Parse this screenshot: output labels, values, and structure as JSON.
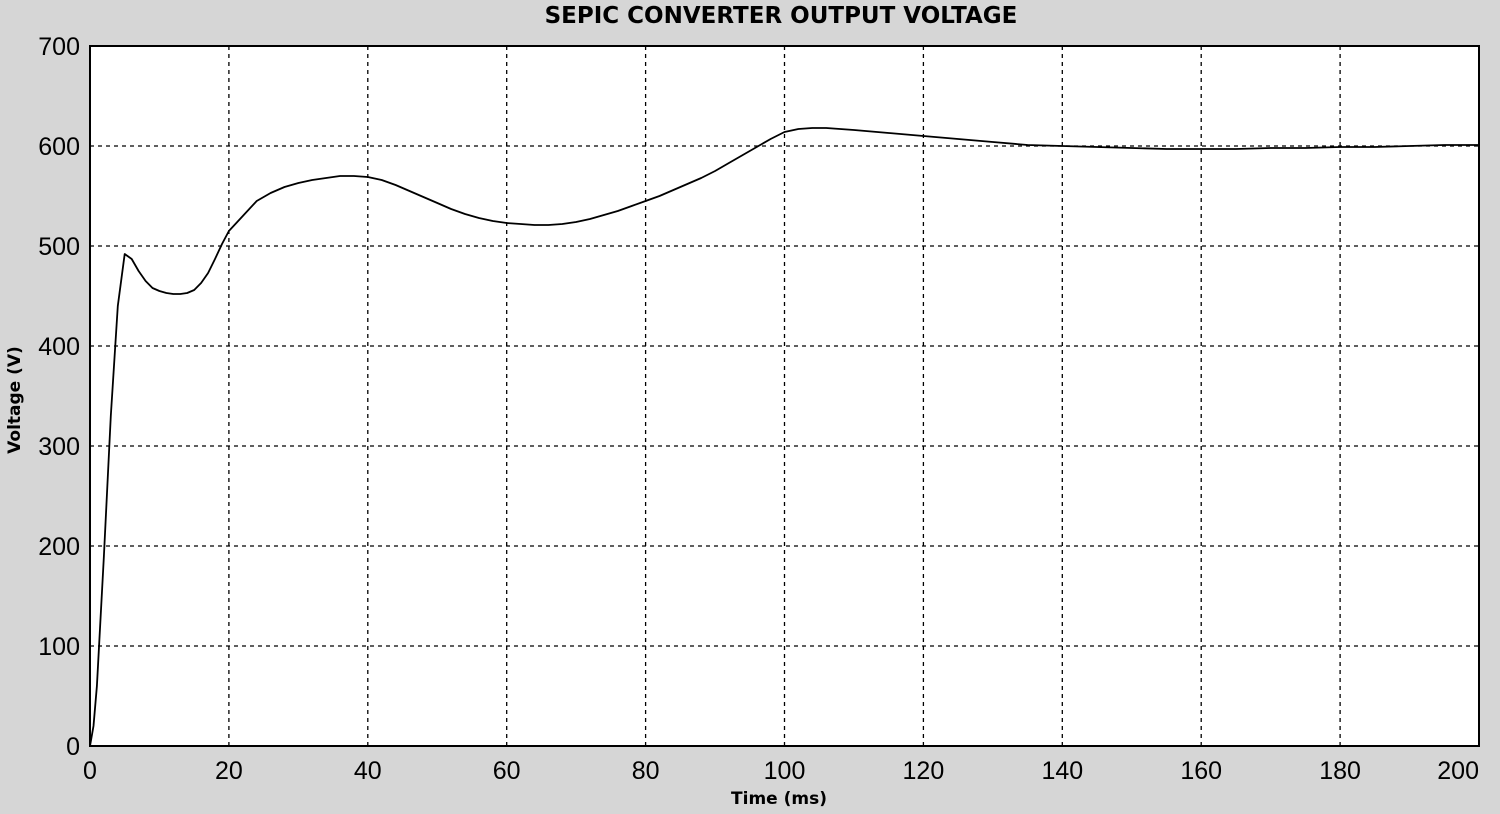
{
  "chart_data": {
    "type": "line",
    "title": "SEPIC CONVERTER OUTPUT VOLTAGE",
    "xlabel": "Time (ms)",
    "ylabel": "Voltage (V)",
    "xlim": [
      0,
      200
    ],
    "ylim": [
      0,
      700
    ],
    "xticks": [
      0,
      20,
      40,
      60,
      80,
      100,
      120,
      140,
      160,
      180,
      200
    ],
    "yticks": [
      0,
      100,
      200,
      300,
      400,
      500,
      600,
      700
    ],
    "grid": true,
    "grid_style": "dashed",
    "line_color": "#000000",
    "series": [
      {
        "x": [
          0,
          0.5,
          1,
          2,
          3,
          4,
          5,
          6,
          7,
          8,
          9,
          10,
          11,
          12,
          13,
          14,
          15,
          16,
          17,
          18,
          19,
          20,
          22,
          24,
          26,
          28,
          30,
          32,
          34,
          36,
          38,
          40,
          42,
          44,
          46,
          48,
          50,
          52,
          54,
          56,
          58,
          60,
          62,
          64,
          66,
          68,
          70,
          72,
          74,
          76,
          78,
          80,
          82,
          84,
          86,
          88,
          90,
          92,
          94,
          96,
          98,
          100,
          102,
          104,
          106,
          108,
          110,
          115,
          120,
          125,
          130,
          135,
          140,
          145,
          150,
          155,
          160,
          165,
          170,
          175,
          180,
          185,
          190,
          195,
          200
        ],
        "y": [
          0,
          20,
          60,
          190,
          330,
          440,
          492,
          487,
          475,
          465,
          458,
          455,
          453,
          452,
          452,
          453,
          456,
          463,
          473,
          487,
          502,
          515,
          530,
          545,
          553,
          559,
          563,
          566,
          568,
          570,
          570,
          569,
          566,
          561,
          555,
          549,
          543,
          537,
          532,
          528,
          525,
          523,
          522,
          521,
          521,
          522,
          524,
          527,
          531,
          535,
          540,
          545,
          550,
          556,
          562,
          568,
          575,
          583,
          591,
          599,
          607,
          614,
          617,
          618,
          618,
          617,
          616,
          613,
          610,
          607,
          604,
          601,
          600,
          599,
          598,
          597,
          597,
          597,
          598,
          598,
          599,
          599,
          600,
          601,
          601
        ]
      }
    ]
  }
}
